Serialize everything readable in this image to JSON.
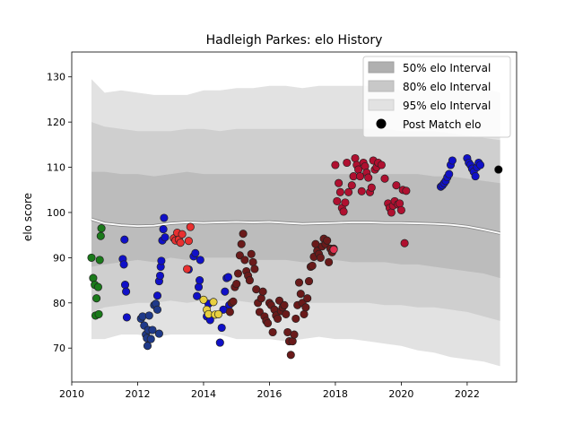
{
  "chart_data": {
    "type": "scatter",
    "title": "Hadleigh Parkes: elo History",
    "xlabel": "",
    "ylabel": "elo score",
    "xlim": [
      2010.0,
      2023.5
    ],
    "ylim": [
      62.5,
      135.5
    ],
    "x_ticks": [
      2010,
      2012,
      2014,
      2016,
      2018,
      2020,
      2022
    ],
    "y_ticks": [
      70,
      80,
      90,
      100,
      110,
      120,
      130
    ],
    "grid": false,
    "legend_position": "top-right",
    "legend": [
      {
        "label": "50% elo Interval",
        "kind": "band",
        "color": "#b0b0b0"
      },
      {
        "label": "80% elo Interval",
        "kind": "band",
        "color": "#c8c8c8"
      },
      {
        "label": "95% elo Interval",
        "kind": "band",
        "color": "#e2e2e2"
      },
      {
        "label": "Post Match elo",
        "kind": "marker",
        "color": "#000000"
      }
    ],
    "elo_trend": {
      "x": [
        2010.6,
        2011.0,
        2011.5,
        2012.0,
        2012.5,
        2013.0,
        2013.5,
        2014.0,
        2014.5,
        2015.0,
        2015.5,
        2016.0,
        2016.5,
        2017.0,
        2017.5,
        2018.0,
        2018.5,
        2019.0,
        2019.5,
        2020.0,
        2020.5,
        2021.0,
        2021.5,
        2022.0,
        2022.5,
        2023.0
      ],
      "mean": [
        98.5,
        97.6,
        97.2,
        97.0,
        97.1,
        97.6,
        97.8,
        97.7,
        97.8,
        97.9,
        97.8,
        97.9,
        97.7,
        97.5,
        97.6,
        97.7,
        97.8,
        97.8,
        97.7,
        97.7,
        97.6,
        97.5,
        97.3,
        96.9,
        96.2,
        95.4
      ],
      "p50_low": [
        88,
        88.5,
        89,
        89.5,
        89,
        90,
        89.5,
        90,
        90,
        90,
        89.5,
        89.5,
        89.5,
        89,
        89,
        89.5,
        89,
        89,
        89,
        88.5,
        88.5,
        88,
        87.5,
        87,
        86.5,
        85.5
      ],
      "p50_high": [
        109,
        109,
        108.5,
        108.5,
        108,
        108.5,
        109,
        108.5,
        108.5,
        108.5,
        108.5,
        108.5,
        108.5,
        108.5,
        108.5,
        108.5,
        108.5,
        108.5,
        108.5,
        108.5,
        108.5,
        108,
        108,
        107.5,
        107,
        106.5
      ],
      "p80_low": [
        78,
        79,
        79.5,
        80,
        80,
        80.5,
        80,
        80.5,
        80.5,
        80.5,
        80,
        80,
        80,
        80,
        80,
        80,
        80,
        80,
        79.5,
        79.5,
        79,
        79,
        78.5,
        78,
        77,
        76
      ],
      "p80_high": [
        120,
        119,
        118.5,
        118,
        118,
        118,
        118.5,
        118.5,
        118,
        118.5,
        118.5,
        118.5,
        118.5,
        118.5,
        118.5,
        118.5,
        118.5,
        118.5,
        118.5,
        118,
        118,
        118,
        117.5,
        117,
        116.5,
        116
      ],
      "p95_low": [
        72,
        72,
        73,
        73,
        72.5,
        73,
        73,
        73,
        73,
        72,
        72,
        72,
        71.5,
        72,
        72.5,
        72,
        72,
        71.5,
        71,
        70.5,
        69.5,
        69,
        68,
        67.5,
        67,
        66
      ],
      "p95_high": [
        129.5,
        126.5,
        127,
        126.5,
        126,
        126,
        126,
        127,
        127,
        127.5,
        127.5,
        128,
        128,
        127.5,
        128,
        128,
        128,
        128,
        127.5,
        127,
        127,
        128,
        128,
        128,
        127.5,
        126.5
      ]
    },
    "series": [
      {
        "color": "#1a7a1a",
        "points": [
          [
            2010.6,
            90.0
          ],
          [
            2010.65,
            85.5
          ],
          [
            2010.7,
            84.0
          ],
          [
            2010.72,
            77.2
          ],
          [
            2010.75,
            81.0
          ],
          [
            2010.8,
            83.5
          ],
          [
            2010.82,
            77.5
          ],
          [
            2010.85,
            89.5
          ],
          [
            2010.88,
            94.8
          ],
          [
            2010.9,
            96.5
          ]
        ]
      },
      {
        "color": "#1010c8",
        "points": [
          [
            2011.55,
            89.7
          ],
          [
            2011.58,
            88.5
          ],
          [
            2011.6,
            94.0
          ],
          [
            2011.62,
            84.0
          ],
          [
            2011.65,
            82.5
          ],
          [
            2011.67,
            76.8
          ],
          [
            2012.6,
            81.6
          ],
          [
            2012.65,
            84.8
          ],
          [
            2012.68,
            86.0
          ],
          [
            2012.7,
            88.0
          ],
          [
            2012.72,
            89.3
          ],
          [
            2012.75,
            93.8
          ],
          [
            2012.78,
            96.3
          ],
          [
            2012.8,
            98.8
          ],
          [
            2012.83,
            94.5
          ],
          [
            2013.55,
            87.4
          ],
          [
            2013.7,
            90.3
          ],
          [
            2013.75,
            91.0
          ],
          [
            2013.8,
            81.5
          ],
          [
            2013.85,
            83.5
          ],
          [
            2013.88,
            85.0
          ],
          [
            2013.9,
            89.5
          ],
          [
            2014.1,
            77.0
          ],
          [
            2014.15,
            79.8
          ],
          [
            2014.2,
            76.2
          ],
          [
            2014.5,
            71.2
          ],
          [
            2014.55,
            74.5
          ],
          [
            2014.6,
            78.5
          ],
          [
            2014.65,
            82.5
          ],
          [
            2014.7,
            85.5
          ],
          [
            2014.75,
            85.7
          ],
          [
            2014.78,
            79.5
          ]
        ]
      },
      {
        "color": "#1f3a8a",
        "points": [
          [
            2012.1,
            76.5
          ],
          [
            2012.15,
            77.0
          ],
          [
            2012.2,
            75.0
          ],
          [
            2012.25,
            73.0
          ],
          [
            2012.28,
            72.2
          ],
          [
            2012.3,
            70.5
          ],
          [
            2012.32,
            74.0
          ],
          [
            2012.35,
            77.2
          ],
          [
            2012.4,
            72.0
          ],
          [
            2012.45,
            74.0
          ],
          [
            2012.5,
            79.5
          ],
          [
            2012.55,
            79.8
          ],
          [
            2012.6,
            78.5
          ],
          [
            2012.65,
            73.2
          ]
        ]
      },
      {
        "color": "#e83030",
        "points": [
          [
            2013.1,
            94.3
          ],
          [
            2013.15,
            93.8
          ],
          [
            2013.2,
            95.5
          ],
          [
            2013.25,
            94.0
          ],
          [
            2013.3,
            93.3
          ],
          [
            2013.35,
            95.2
          ],
          [
            2013.5,
            87.5
          ],
          [
            2013.55,
            93.7
          ],
          [
            2013.6,
            96.8
          ]
        ]
      },
      {
        "color": "#e8d040",
        "points": [
          [
            2014.0,
            80.7
          ],
          [
            2014.1,
            78.5
          ],
          [
            2014.15,
            77.5
          ],
          [
            2014.3,
            80.2
          ],
          [
            2014.35,
            77.4
          ],
          [
            2014.45,
            77.5
          ]
        ]
      },
      {
        "color": "#6a1a1a",
        "points": [
          [
            2014.8,
            78.0
          ],
          [
            2014.85,
            80.0
          ],
          [
            2014.9,
            80.3
          ],
          [
            2014.95,
            83.5
          ],
          [
            2015.0,
            84.2
          ],
          [
            2015.05,
            86.5
          ],
          [
            2015.1,
            90.5
          ],
          [
            2015.15,
            93.0
          ],
          [
            2015.2,
            95.3
          ],
          [
            2015.25,
            89.5
          ],
          [
            2015.3,
            87.0
          ],
          [
            2015.35,
            86.0
          ],
          [
            2015.4,
            85.0
          ],
          [
            2015.45,
            90.8
          ],
          [
            2015.5,
            89.0
          ],
          [
            2015.55,
            87.5
          ],
          [
            2015.6,
            83.0
          ],
          [
            2015.65,
            80.0
          ],
          [
            2015.7,
            78.0
          ],
          [
            2015.75,
            81.0
          ],
          [
            2015.8,
            82.5
          ],
          [
            2015.85,
            77.0
          ],
          [
            2015.9,
            76.0
          ],
          [
            2015.95,
            75.5
          ],
          [
            2016.0,
            80.0
          ],
          [
            2016.05,
            79.5
          ],
          [
            2016.1,
            73.5
          ],
          [
            2016.15,
            78.5
          ],
          [
            2016.2,
            77.2
          ],
          [
            2016.25,
            76.5
          ],
          [
            2016.3,
            80.5
          ],
          [
            2016.35,
            78.2
          ],
          [
            2016.4,
            79.0
          ],
          [
            2016.45,
            79.5
          ],
          [
            2016.5,
            77.5
          ],
          [
            2016.55,
            73.5
          ],
          [
            2016.6,
            71.5
          ],
          [
            2016.65,
            68.5
          ],
          [
            2016.7,
            71.5
          ],
          [
            2016.75,
            73.0
          ],
          [
            2016.8,
            76.5
          ],
          [
            2016.85,
            79.5
          ],
          [
            2016.9,
            84.5
          ],
          [
            2016.95,
            82.0
          ],
          [
            2017.0,
            80.0
          ],
          [
            2017.05,
            77.5
          ],
          [
            2017.1,
            79.0
          ],
          [
            2017.15,
            81.0
          ],
          [
            2017.2,
            84.8
          ],
          [
            2017.25,
            88.0
          ],
          [
            2017.3,
            88.2
          ],
          [
            2017.35,
            90.2
          ],
          [
            2017.4,
            93.0
          ],
          [
            2017.45,
            91.5
          ],
          [
            2017.5,
            90.8
          ],
          [
            2017.55,
            90.0
          ],
          [
            2017.6,
            92.5
          ],
          [
            2017.65,
            94.2
          ],
          [
            2017.7,
            93.0
          ],
          [
            2017.75,
            93.8
          ],
          [
            2017.8,
            89.0
          ],
          [
            2017.85,
            92.0
          ],
          [
            2017.9,
            91.2
          ],
          [
            2017.95,
            92.0
          ]
        ]
      },
      {
        "color": "#b01030",
        "points": [
          [
            2018.0,
            110.5
          ],
          [
            2018.05,
            102.5
          ],
          [
            2018.1,
            106.5
          ],
          [
            2018.15,
            104.5
          ],
          [
            2018.2,
            101.0
          ],
          [
            2018.25,
            100.2
          ],
          [
            2018.3,
            102.2
          ],
          [
            2018.35,
            111.0
          ],
          [
            2018.4,
            104.5
          ],
          [
            2018.5,
            106.0
          ],
          [
            2018.55,
            108.0
          ],
          [
            2018.6,
            112.0
          ],
          [
            2018.65,
            110.5
          ],
          [
            2018.7,
            109.5
          ],
          [
            2018.75,
            108.0
          ],
          [
            2018.8,
            104.7
          ],
          [
            2018.85,
            111.0
          ],
          [
            2018.9,
            110.2
          ],
          [
            2018.95,
            108.8
          ],
          [
            2019.0,
            107.7
          ],
          [
            2019.05,
            104.5
          ],
          [
            2019.1,
            105.5
          ],
          [
            2019.15,
            111.5
          ],
          [
            2019.2,
            109.5
          ],
          [
            2019.25,
            110.0
          ],
          [
            2019.3,
            111.0
          ],
          [
            2019.4,
            110.5
          ],
          [
            2019.5,
            107.5
          ],
          [
            2019.6,
            102.0
          ],
          [
            2019.65,
            101.0
          ],
          [
            2019.7,
            100.0
          ],
          [
            2019.75,
            101.5
          ],
          [
            2019.8,
            102.5
          ],
          [
            2019.85,
            106.0
          ],
          [
            2019.9,
            101.8
          ],
          [
            2019.95,
            102.0
          ],
          [
            2020.0,
            100.5
          ],
          [
            2020.05,
            105.0
          ],
          [
            2020.1,
            93.2
          ],
          [
            2020.15,
            104.8
          ]
        ]
      },
      {
        "color": "#1010c8",
        "points": [
          [
            2021.2,
            105.7
          ],
          [
            2021.25,
            106.0
          ],
          [
            2021.3,
            106.5
          ],
          [
            2021.35,
            107.0
          ],
          [
            2021.4,
            107.8
          ],
          [
            2021.45,
            108.5
          ],
          [
            2021.5,
            110.5
          ],
          [
            2021.55,
            111.5
          ],
          [
            2022.0,
            112.0
          ],
          [
            2022.05,
            111.0
          ],
          [
            2022.1,
            110.5
          ],
          [
            2022.15,
            109.7
          ],
          [
            2022.2,
            109.0
          ],
          [
            2022.25,
            108.0
          ],
          [
            2022.3,
            110.0
          ],
          [
            2022.35,
            111.0
          ],
          [
            2022.4,
            110.5
          ]
        ]
      },
      {
        "color": "#e03050",
        "points": [
          [
            2017.95,
            91.8
          ]
        ]
      },
      {
        "color": "#000000",
        "points": [
          [
            2022.95,
            109.5
          ]
        ]
      }
    ]
  }
}
